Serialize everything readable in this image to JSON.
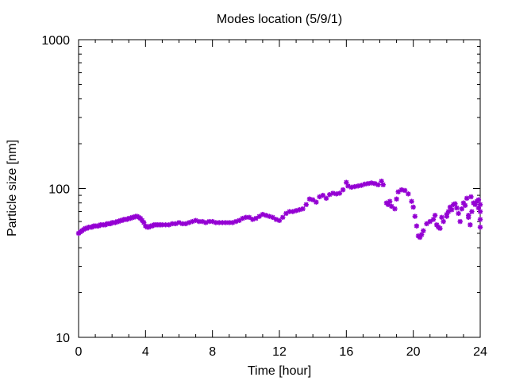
{
  "chart_data": {
    "type": "scatter",
    "title": "Modes location (5/9/1)",
    "xlabel": "Time [hour]",
    "ylabel": "Particle size [nm]",
    "xlim": [
      0,
      24
    ],
    "ylim": [
      10,
      1000
    ],
    "yscale": "log",
    "grid": false,
    "marker_color": "#9400d3",
    "x_ticks": [
      0,
      4,
      8,
      12,
      16,
      20,
      24
    ],
    "x_tick_labels": [
      "0",
      "4",
      "8",
      "12",
      "16",
      "20",
      "24"
    ],
    "y_ticks": [
      10,
      100,
      1000
    ],
    "y_tick_labels": [
      "10",
      "100",
      "1000"
    ],
    "series": [
      {
        "points": [
          [
            0.0,
            50
          ],
          [
            0.1,
            51
          ],
          [
            0.2,
            52
          ],
          [
            0.3,
            53
          ],
          [
            0.4,
            54
          ],
          [
            0.5,
            54
          ],
          [
            0.6,
            55
          ],
          [
            0.7,
            55
          ],
          [
            0.8,
            55
          ],
          [
            0.9,
            56
          ],
          [
            1.0,
            56
          ],
          [
            1.1,
            56
          ],
          [
            1.2,
            56
          ],
          [
            1.3,
            57
          ],
          [
            1.4,
            57
          ],
          [
            1.5,
            57
          ],
          [
            1.6,
            57
          ],
          [
            1.7,
            58
          ],
          [
            1.8,
            58
          ],
          [
            1.9,
            58
          ],
          [
            2.0,
            59
          ],
          [
            2.1,
            59
          ],
          [
            2.2,
            59
          ],
          [
            2.3,
            60
          ],
          [
            2.4,
            60
          ],
          [
            2.5,
            61
          ],
          [
            2.6,
            61
          ],
          [
            2.7,
            62
          ],
          [
            2.8,
            62
          ],
          [
            2.9,
            62
          ],
          [
            3.0,
            63
          ],
          [
            3.1,
            63
          ],
          [
            3.2,
            64
          ],
          [
            3.3,
            64
          ],
          [
            3.4,
            65
          ],
          [
            3.5,
            65
          ],
          [
            3.6,
            64
          ],
          [
            3.7,
            63
          ],
          [
            3.8,
            61
          ],
          [
            3.9,
            59
          ],
          [
            4.0,
            56
          ],
          [
            4.1,
            55
          ],
          [
            4.2,
            55
          ],
          [
            4.3,
            56
          ],
          [
            4.4,
            56
          ],
          [
            4.5,
            57
          ],
          [
            4.6,
            57
          ],
          [
            4.7,
            57
          ],
          [
            4.8,
            57
          ],
          [
            4.9,
            57
          ],
          [
            5.0,
            57
          ],
          [
            5.2,
            57
          ],
          [
            5.4,
            57
          ],
          [
            5.6,
            58
          ],
          [
            5.8,
            58
          ],
          [
            6.0,
            59
          ],
          [
            6.2,
            58
          ],
          [
            6.4,
            58
          ],
          [
            6.6,
            59
          ],
          [
            6.8,
            60
          ],
          [
            7.0,
            61
          ],
          [
            7.2,
            60
          ],
          [
            7.4,
            60
          ],
          [
            7.6,
            59
          ],
          [
            7.8,
            60
          ],
          [
            8.0,
            60
          ],
          [
            8.2,
            59
          ],
          [
            8.4,
            59
          ],
          [
            8.6,
            59
          ],
          [
            8.8,
            59
          ],
          [
            9.0,
            59
          ],
          [
            9.2,
            59
          ],
          [
            9.4,
            60
          ],
          [
            9.6,
            61
          ],
          [
            9.8,
            63
          ],
          [
            10.0,
            64
          ],
          [
            10.2,
            64
          ],
          [
            10.4,
            62
          ],
          [
            10.6,
            63
          ],
          [
            10.8,
            65
          ],
          [
            11.0,
            67
          ],
          [
            11.2,
            66
          ],
          [
            11.4,
            65
          ],
          [
            11.6,
            64
          ],
          [
            11.8,
            62
          ],
          [
            12.0,
            61
          ],
          [
            12.2,
            64
          ],
          [
            12.4,
            68
          ],
          [
            12.6,
            70
          ],
          [
            12.8,
            70
          ],
          [
            13.0,
            71
          ],
          [
            13.2,
            72
          ],
          [
            13.4,
            73
          ],
          [
            13.6,
            78
          ],
          [
            13.8,
            85
          ],
          [
            14.0,
            84
          ],
          [
            14.2,
            81
          ],
          [
            14.4,
            88
          ],
          [
            14.6,
            90
          ],
          [
            14.8,
            86
          ],
          [
            15.0,
            91
          ],
          [
            15.2,
            93
          ],
          [
            15.4,
            92
          ],
          [
            15.6,
            93
          ],
          [
            15.8,
            98
          ],
          [
            16.0,
            110
          ],
          [
            16.1,
            104
          ],
          [
            16.3,
            102
          ],
          [
            16.5,
            103
          ],
          [
            16.7,
            104
          ],
          [
            16.9,
            105
          ],
          [
            17.1,
            107
          ],
          [
            17.3,
            108
          ],
          [
            17.5,
            109
          ],
          [
            17.7,
            108
          ],
          [
            17.9,
            106
          ],
          [
            18.1,
            112
          ],
          [
            18.2,
            106
          ],
          [
            18.4,
            80
          ],
          [
            18.5,
            78
          ],
          [
            18.6,
            82
          ],
          [
            18.7,
            76
          ],
          [
            18.9,
            73
          ],
          [
            19.0,
            85
          ],
          [
            19.1,
            95
          ],
          [
            19.3,
            98
          ],
          [
            19.5,
            97
          ],
          [
            19.7,
            92
          ],
          [
            19.9,
            82
          ],
          [
            20.0,
            75
          ],
          [
            20.1,
            65
          ],
          [
            20.2,
            56
          ],
          [
            20.3,
            48
          ],
          [
            20.4,
            47
          ],
          [
            20.5,
            49
          ],
          [
            20.6,
            52
          ],
          [
            20.8,
            58
          ],
          [
            21.0,
            60
          ],
          [
            21.2,
            62
          ],
          [
            21.3,
            66
          ],
          [
            21.4,
            57
          ],
          [
            21.5,
            55
          ],
          [
            21.6,
            54
          ],
          [
            21.8,
            60
          ],
          [
            22.0,
            67
          ],
          [
            22.1,
            70
          ],
          [
            22.3,
            72
          ],
          [
            22.4,
            78
          ],
          [
            22.6,
            74
          ],
          [
            22.7,
            68
          ],
          [
            22.9,
            73
          ],
          [
            23.0,
            80
          ],
          [
            23.1,
            77
          ],
          [
            23.3,
            64
          ],
          [
            23.4,
            57
          ],
          [
            23.5,
            70
          ],
          [
            23.7,
            78
          ],
          [
            23.8,
            82
          ],
          [
            23.9,
            74
          ],
          [
            24.0,
            62
          ],
          [
            24.0,
            55
          ],
          [
            22.0,
            65
          ],
          [
            22.5,
            79
          ],
          [
            23.2,
            86
          ],
          [
            23.6,
            80
          ],
          [
            21.7,
            64
          ],
          [
            22.2,
            75
          ],
          [
            22.8,
            60
          ],
          [
            23.45,
            88
          ],
          [
            23.9,
            84
          ],
          [
            24.0,
            78
          ],
          [
            24.0,
            70
          ],
          [
            23.3,
            66
          ]
        ]
      }
    ]
  }
}
